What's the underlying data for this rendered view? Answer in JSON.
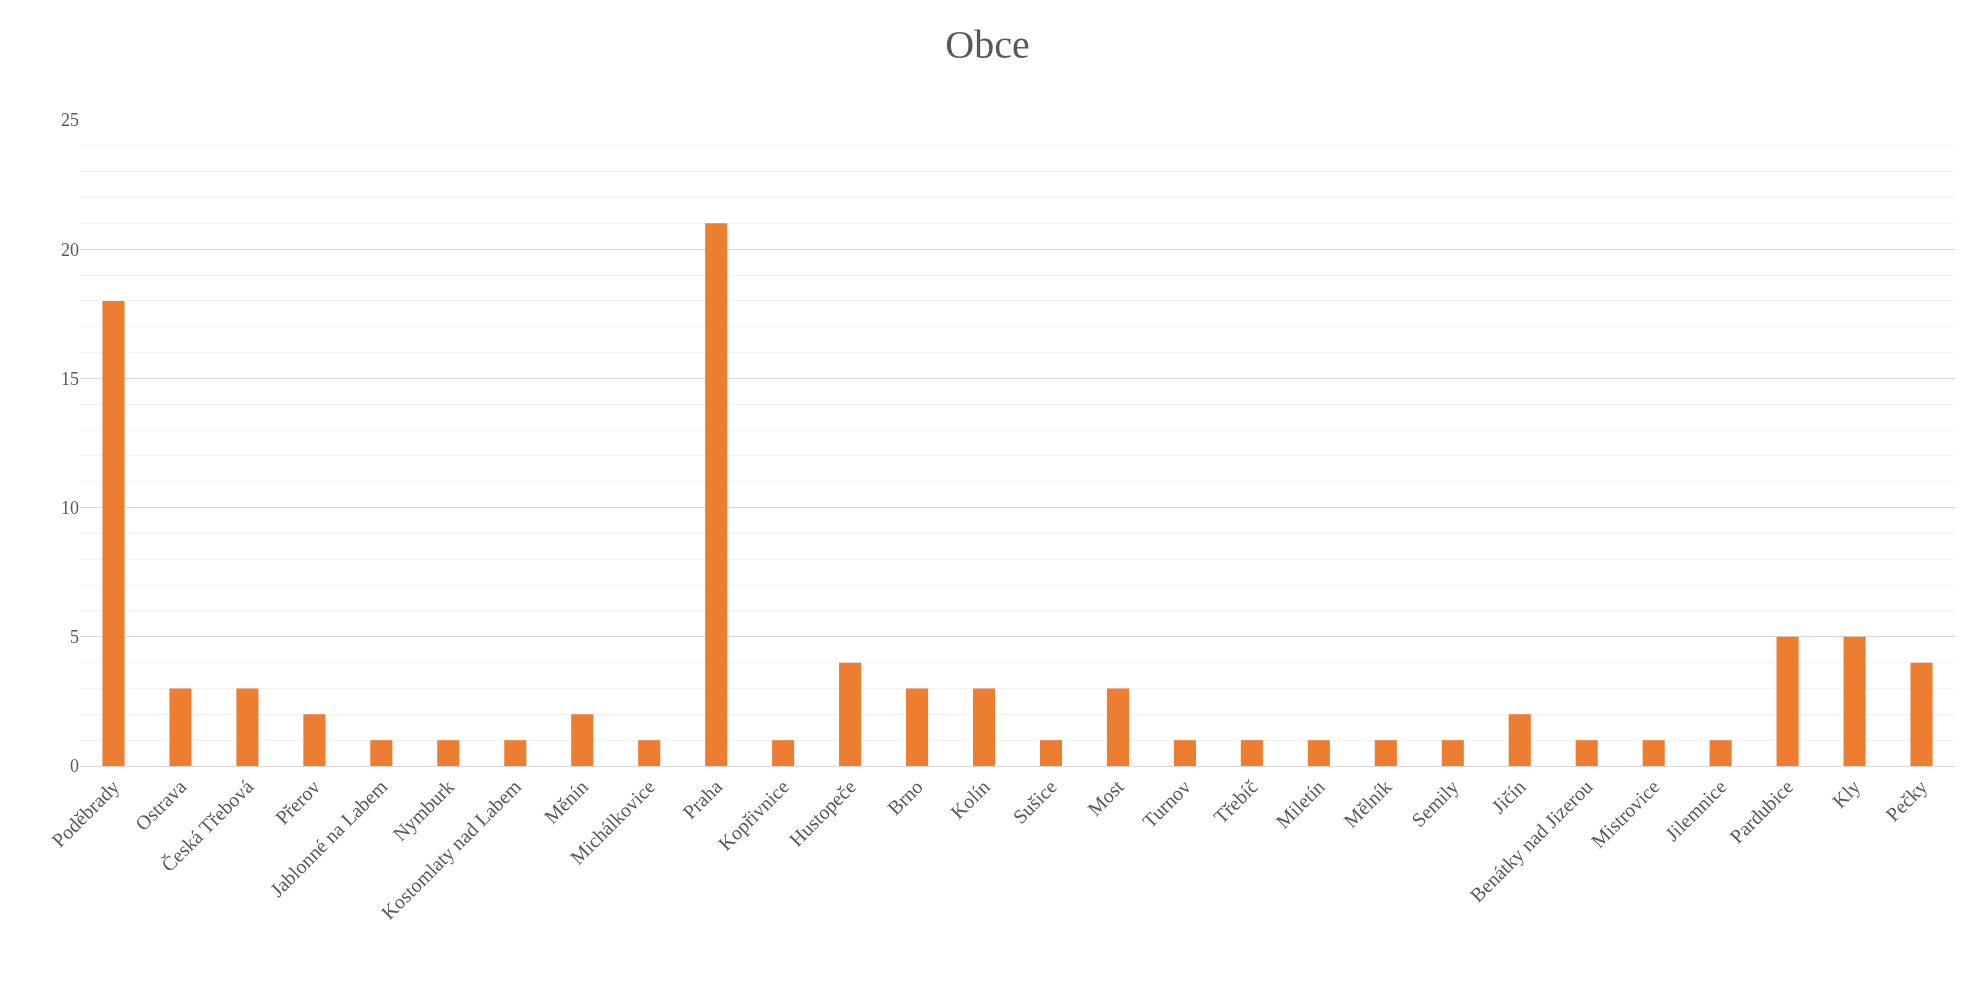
{
  "chart_data": {
    "type": "bar",
    "title": "Obce",
    "categories": [
      "Poděbrady",
      "Ostrava",
      "Česká Třebová",
      "Přerov",
      "Jablonné na Labem",
      "Nymburk",
      "Kostomlaty nad Labem",
      "Měnín",
      "Michálkovice",
      "Praha",
      "Kopřivnice",
      "Hustopeče",
      "Brno",
      "Kolín",
      "Sušice",
      "Most",
      "Turnov",
      "Třebíč",
      "Miletín",
      "Mělník",
      "Semily",
      "Jičín",
      "Benátky nad Jizerou",
      "Mistrovice",
      "Jilemnice",
      "Pardubice",
      "Kly",
      "Pečky"
    ],
    "values": [
      18,
      3,
      3,
      2,
      1,
      1,
      1,
      2,
      1,
      21,
      1,
      4,
      3,
      3,
      1,
      3,
      1,
      1,
      1,
      1,
      1,
      2,
      1,
      1,
      1,
      5,
      5,
      4
    ],
    "color": "#ed7d31",
    "ylim": [
      0,
      25
    ],
    "yticks": [
      0,
      5,
      10,
      15,
      20,
      25
    ],
    "grid": "y"
  }
}
